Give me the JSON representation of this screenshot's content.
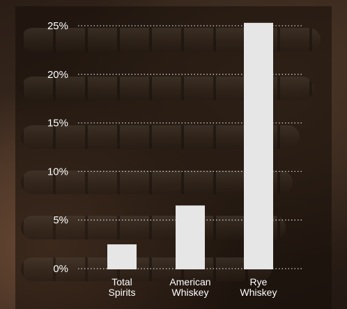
{
  "chart_data": {
    "type": "bar",
    "categories": [
      [
        "Total",
        "Spirits"
      ],
      [
        "American",
        "Whiskey"
      ],
      [
        "Rye",
        "Whiskey"
      ]
    ],
    "values": [
      2.5,
      6.5,
      25.3
    ],
    "ylim": [
      0,
      25
    ],
    "yticks": [
      0,
      5,
      10,
      15,
      20,
      25
    ],
    "ytick_labels": [
      "0%",
      "5%",
      "10%",
      "15%",
      "20%",
      "25%"
    ],
    "title": "",
    "xlabel": "",
    "ylabel": "",
    "grid": true,
    "bar_color": "#e6e6e6",
    "grid_color": "#cfcfcf"
  }
}
